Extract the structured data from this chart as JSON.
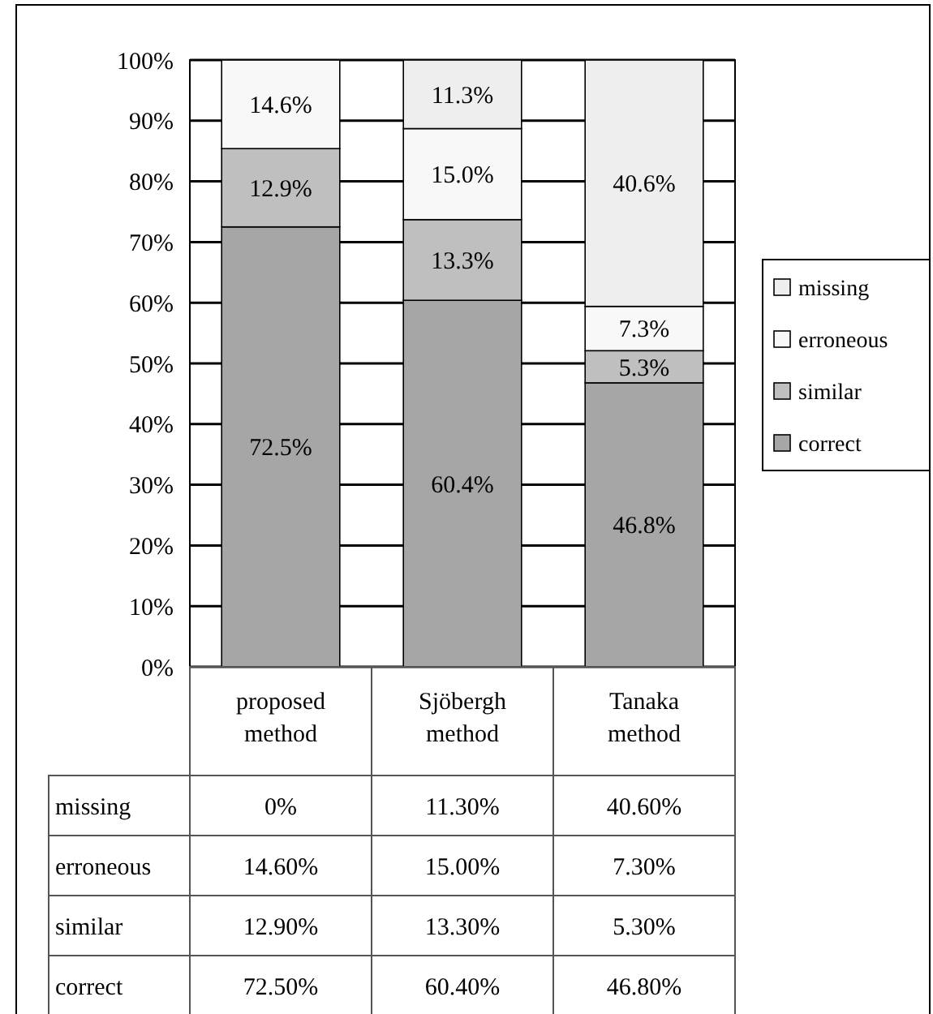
{
  "chart_data": {
    "type": "bar",
    "stacked": true,
    "categories": [
      "proposed method",
      "Sjöbergh method",
      "Tanaka method"
    ],
    "series": [
      {
        "name": "correct",
        "color": "#a6a6a6",
        "values": [
          72.5,
          60.4,
          46.8
        ],
        "value_labels": [
          "72.5%",
          "60.4%",
          "46.8%"
        ]
      },
      {
        "name": "similar",
        "color": "#bfbfbf",
        "values": [
          12.9,
          13.3,
          5.3
        ],
        "value_labels": [
          "12.9%",
          "13.3%",
          "5.3%"
        ]
      },
      {
        "name": "erroneous",
        "color": "#f8f8f8",
        "values": [
          14.6,
          15.0,
          7.3
        ],
        "value_labels": [
          "14.6%",
          "15.0%",
          "7.3%"
        ]
      },
      {
        "name": "missing",
        "color": "#eeeeee",
        "values": [
          0,
          11.3,
          40.6
        ],
        "value_labels": [
          null,
          "11.3%",
          "40.6%"
        ]
      }
    ],
    "ylim": [
      0,
      100
    ],
    "yticks": [
      {
        "value": 0,
        "label": "0%"
      },
      {
        "value": 10,
        "label": "10%"
      },
      {
        "value": 20,
        "label": "20%"
      },
      {
        "value": 30,
        "label": "30%"
      },
      {
        "value": 40,
        "label": "40%"
      },
      {
        "value": 50,
        "label": "50%"
      },
      {
        "value": 60,
        "label": "60%"
      },
      {
        "value": 70,
        "label": "70%"
      },
      {
        "value": 80,
        "label": "80%"
      },
      {
        "value": 90,
        "label": "90%"
      },
      {
        "value": 100,
        "label": "100%"
      }
    ],
    "grid": "y",
    "legend": "right",
    "annotations": [
      "0%",
      "11.30%",
      "40.60%",
      "14.60%",
      "15.00%",
      "7.30%",
      "12.90%",
      "13.30%",
      "5.30%",
      "72.50%",
      "60.40%",
      "46.80%"
    ]
  }
}
